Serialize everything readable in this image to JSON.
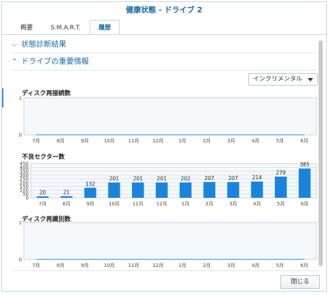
{
  "window": {
    "title": "健康状態 - ドライブ 2"
  },
  "tabs": [
    {
      "label": "概要"
    },
    {
      "label": "S.M.A.R.T."
    },
    {
      "label": "履歴"
    }
  ],
  "sections": {
    "diagnosis": "状態診断結果",
    "important": "ドライブの重要情報"
  },
  "mode_select": {
    "value": "インクリメンタル"
  },
  "footer": {
    "close_label": "閉じる"
  },
  "colors": {
    "accent": "#1a6aa8",
    "bar": "#1a84dd"
  },
  "chart_data": [
    {
      "type": "line",
      "title": "ディスク再接続数",
      "categories": [
        "7月",
        "8月",
        "9月",
        "10月",
        "11月",
        "12月",
        "1月",
        "2月",
        "3月",
        "4月",
        "5月",
        "6月"
      ],
      "series": [
        {
          "values": [
            0,
            0,
            0,
            0,
            0,
            0,
            0,
            0,
            0,
            0,
            0,
            0
          ]
        }
      ],
      "yticks": [
        "0",
        "1"
      ],
      "ylim": [
        0,
        1
      ],
      "grid": true
    },
    {
      "type": "bar",
      "title": "不良セクター数",
      "categories": [
        "7月",
        "8月",
        "9月",
        "10月",
        "11月",
        "12月",
        "1月",
        "2月",
        "3月",
        "4月",
        "5月",
        "6月"
      ],
      "values": [
        20,
        21,
        132,
        201,
        201,
        201,
        202,
        207,
        207,
        214,
        279,
        385
      ],
      "yticks": [
        "0",
        "50",
        "100",
        "150",
        "200",
        "250",
        "300",
        "350",
        "400",
        "450"
      ],
      "ylim": [
        0,
        450
      ],
      "grid": true
    },
    {
      "type": "line",
      "title": "ディスク再識別数",
      "categories": [
        "7月",
        "8月",
        "9月",
        "10月",
        "11月",
        "12月",
        "1月",
        "2月",
        "3月",
        "4月",
        "5月",
        "6月"
      ],
      "series": [
        {
          "values": [
            0,
            0,
            0,
            0,
            0,
            0,
            0,
            0,
            0,
            0,
            0,
            0
          ]
        }
      ],
      "yticks": [
        "0",
        "1"
      ],
      "ylim": [
        0,
        1
      ],
      "grid": true
    }
  ]
}
